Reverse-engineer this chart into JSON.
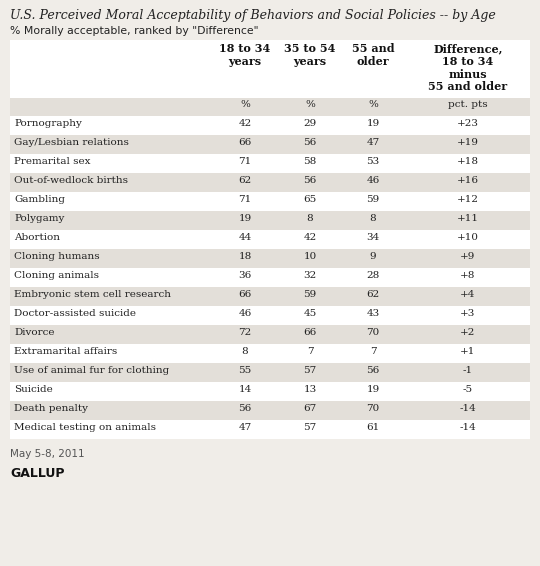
{
  "title": "U.S. Perceived Moral Acceptability of Behaviors and Social Policies -- by Age",
  "subtitle": "% Morally acceptable, ranked by \"Difference\"",
  "col_headers": [
    "18 to 34\nyears",
    "35 to 54\nyears",
    "55 and\nolder",
    "Difference,\n18 to 34\nminus\n55 and older"
  ],
  "col_subheaders": [
    "%",
    "%",
    "%",
    "pct. pts"
  ],
  "rows": [
    [
      "Pornography",
      "42",
      "29",
      "19",
      "+23"
    ],
    [
      "Gay/Lesbian relations",
      "66",
      "56",
      "47",
      "+19"
    ],
    [
      "Premarital sex",
      "71",
      "58",
      "53",
      "+18"
    ],
    [
      "Out-of-wedlock births",
      "62",
      "56",
      "46",
      "+16"
    ],
    [
      "Gambling",
      "71",
      "65",
      "59",
      "+12"
    ],
    [
      "Polygamy",
      "19",
      "8",
      "8",
      "+11"
    ],
    [
      "Abortion",
      "44",
      "42",
      "34",
      "+10"
    ],
    [
      "Cloning humans",
      "18",
      "10",
      "9",
      "+9"
    ],
    [
      "Cloning animals",
      "36",
      "32",
      "28",
      "+8"
    ],
    [
      "Embryonic stem cell research",
      "66",
      "59",
      "62",
      "+4"
    ],
    [
      "Doctor-assisted suicide",
      "46",
      "45",
      "43",
      "+3"
    ],
    [
      "Divorce",
      "72",
      "66",
      "70",
      "+2"
    ],
    [
      "Extramarital affairs",
      "8",
      "7",
      "7",
      "+1"
    ],
    [
      "Use of animal fur for clothing",
      "55",
      "57",
      "56",
      "-1"
    ],
    [
      "Suicide",
      "14",
      "13",
      "19",
      "-5"
    ],
    [
      "Death penalty",
      "56",
      "67",
      "70",
      "-14"
    ],
    [
      "Medical testing on animals",
      "47",
      "57",
      "61",
      "-14"
    ]
  ],
  "footer": "May 5-8, 2011",
  "source": "GALLUP",
  "fig_bg": "#f0ede8",
  "table_bg": "#ffffff",
  "stripe_color": "#e3dfd9",
  "subheader_bg": "#d9d5ce",
  "text_color": "#222222",
  "header_text_color": "#111111",
  "footer_color": "#555555",
  "title_color": "#222222"
}
